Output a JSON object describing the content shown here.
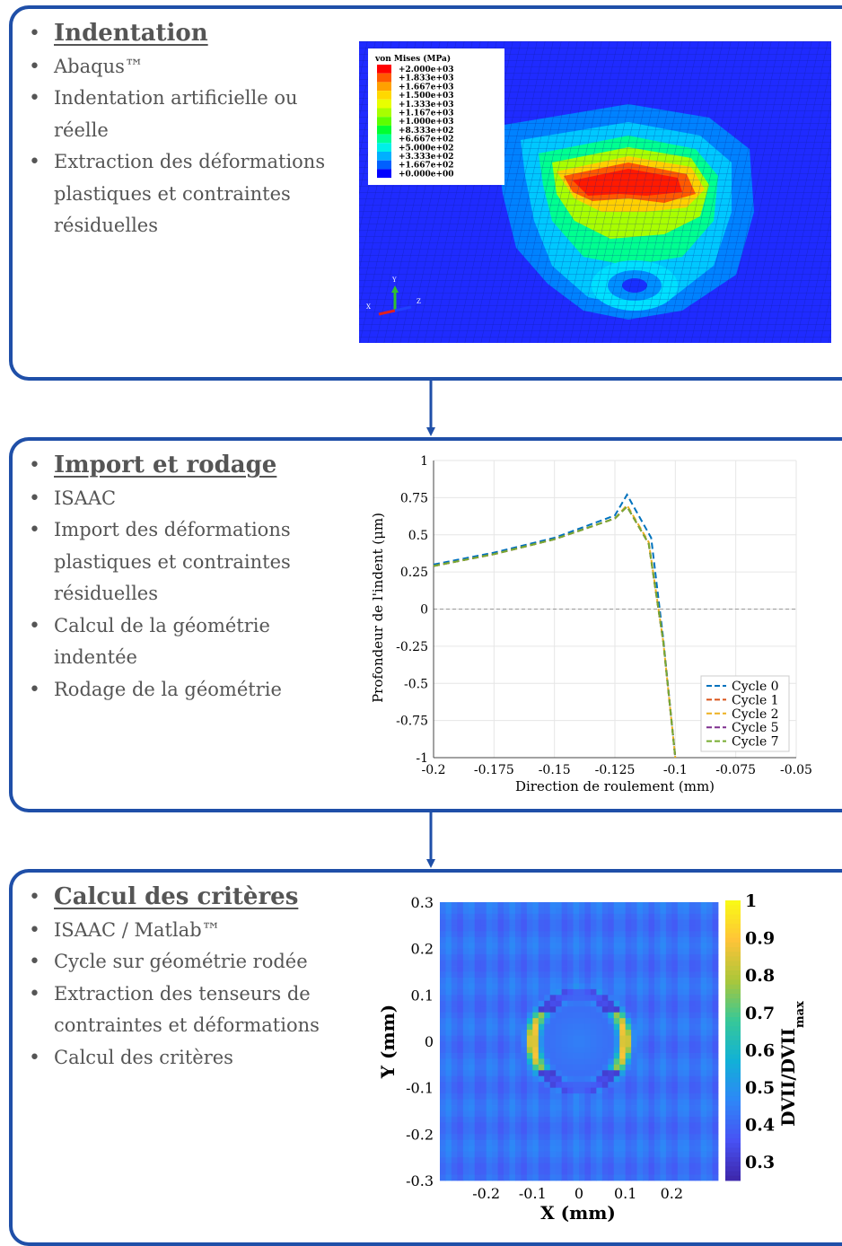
{
  "panels": [
    {
      "title": "Indentation",
      "bullets": [
        "Abaqus™",
        "Indentation artificielle ou réelle",
        "Extraction des déformations plastiques et contraintes résiduelles"
      ]
    },
    {
      "title": "Import et rodage",
      "bullets": [
        "ISAAC",
        "Import des déformations plastiques et contraintes résiduelles",
        "Calcul de la géométrie indentée",
        "Rodage de la géométrie"
      ]
    },
    {
      "title": "Calcul des critères",
      "bullets": [
        "ISAAC / Matlab™",
        "Cycle sur géométrie rodée",
        "Extraction des tenseurs de contraintes et déformations",
        "Calcul des critères"
      ]
    }
  ],
  "fem": {
    "legend_title": "von Mises (MPa)",
    "legend_values": [
      "+2.000e+03",
      "+1.833e+03",
      "+1.667e+03",
      "+1.500e+03",
      "+1.333e+03",
      "+1.167e+03",
      "+1.000e+03",
      "+8.333e+02",
      "+6.667e+02",
      "+5.000e+02",
      "+3.333e+02",
      "+1.667e+02",
      "+0.000e+00"
    ],
    "legend_colors": [
      "#ff0000",
      "#ff5a00",
      "#ffa000",
      "#ffd800",
      "#e8ff00",
      "#a8ff00",
      "#5cff00",
      "#00ff30",
      "#00ff96",
      "#00f0e8",
      "#00b0ff",
      "#0060ff",
      "#0000ff"
    ],
    "axes": {
      "y": "Y",
      "z": "Z",
      "x": "X"
    }
  },
  "chart_data": [
    {
      "type": "line",
      "xlabel": "Direction de roulement (mm)",
      "ylabel": "Profondeur de l'indent (μm)",
      "xlim": [
        -0.2,
        -0.05
      ],
      "ylim": [
        -1,
        1
      ],
      "xticks": [
        "-0.2",
        "-0.175",
        "-0.15",
        "-0.125",
        "-0.1",
        "-0.075",
        "-0.05"
      ],
      "yticks": [
        "1",
        "0.75",
        "0.5",
        "0.25",
        "0",
        "-0.25",
        "-0.5",
        "-0.75",
        "-1"
      ],
      "grid": true,
      "legend_position": "bottom-right",
      "series": [
        {
          "name": "Cycle 0",
          "color": "#0072bd",
          "x": [
            -0.2,
            -0.175,
            -0.15,
            -0.125,
            -0.12,
            -0.11,
            -0.105,
            -0.1
          ],
          "y": [
            0.3,
            0.38,
            0.48,
            0.63,
            0.77,
            0.48,
            -0.2,
            -1.0
          ]
        },
        {
          "name": "Cycle 1",
          "color": "#d95319",
          "x": [
            -0.2,
            -0.175,
            -0.15,
            -0.125,
            -0.12,
            -0.111,
            -0.105,
            -0.1
          ],
          "y": [
            0.29,
            0.37,
            0.47,
            0.61,
            0.69,
            0.44,
            -0.22,
            -1.0
          ]
        },
        {
          "name": "Cycle 2",
          "color": "#edb120",
          "x": [
            -0.2,
            -0.175,
            -0.15,
            -0.125,
            -0.12,
            -0.111,
            -0.105,
            -0.1
          ],
          "y": [
            0.29,
            0.37,
            0.47,
            0.61,
            0.7,
            0.45,
            -0.22,
            -1.0
          ]
        },
        {
          "name": "Cycle 5",
          "color": "#7e2f8e",
          "x": [
            -0.2,
            -0.175,
            -0.15,
            -0.125,
            -0.12,
            -0.111,
            -0.105,
            -0.1
          ],
          "y": [
            0.29,
            0.37,
            0.47,
            0.61,
            0.69,
            0.44,
            -0.22,
            -1.0
          ]
        },
        {
          "name": "Cycle 7",
          "color": "#77ac30",
          "x": [
            -0.2,
            -0.175,
            -0.15,
            -0.125,
            -0.12,
            -0.111,
            -0.105,
            -0.1
          ],
          "y": [
            0.29,
            0.37,
            0.47,
            0.61,
            0.69,
            0.44,
            -0.22,
            -1.0
          ]
        }
      ]
    },
    {
      "type": "heatmap",
      "xlabel": "X (mm)",
      "ylabel": "Y (mm)",
      "xticks": [
        "-0.2",
        "-0.1",
        "0",
        "0.1",
        "0.2"
      ],
      "yticks": [
        "0.3",
        "0.2",
        "0.1",
        "0",
        "-0.1",
        "-0.2",
        "-0.3"
      ],
      "xlim": [
        -0.3,
        0.3
      ],
      "ylim": [
        -0.3,
        0.3
      ],
      "colorbar_label": "DVII/DVII",
      "colorbar_sub": "max",
      "colorbar_ticks": [
        "1",
        "0.9",
        "0.8",
        "0.7",
        "0.6",
        "0.5",
        "0.4",
        "0.3"
      ],
      "colorbar_range": [
        0.25,
        1.0
      ],
      "background_value": 0.42,
      "ring_center": [
        0,
        0
      ],
      "ring_radius": 0.1,
      "ring_peak": 0.95,
      "inner_value": 0.45
    }
  ]
}
